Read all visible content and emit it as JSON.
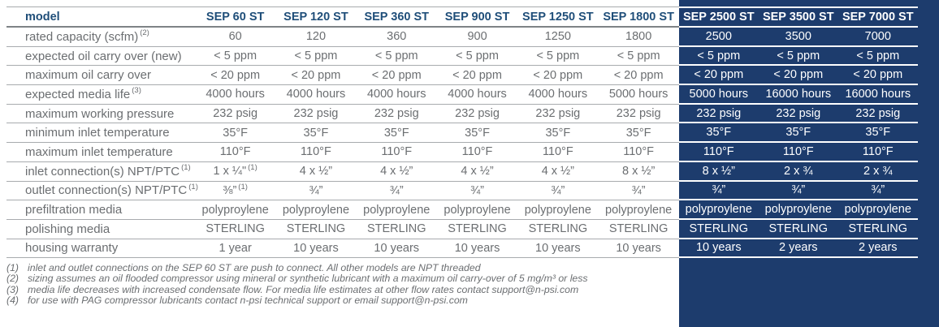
{
  "colors": {
    "navy_panel": "#1d3c6d",
    "header_text": "#1f4e79",
    "body_text": "#6b6e71",
    "divider_gray": "#a8abae",
    "dark_divider": "#ffffff"
  },
  "table": {
    "header": {
      "label": "model",
      "columns": [
        "SEP 60 ST",
        "SEP 120 ST",
        "SEP 360 ST",
        "SEP 900 ST",
        "SEP 1250 ST",
        "SEP 1800 ST",
        "SEP 2500 ST",
        "SEP 3500 ST",
        "SEP 7000 ST"
      ]
    },
    "rows": [
      {
        "label": "rated capacity (scfm)",
        "sup": "(2)",
        "values": [
          "60",
          "120",
          "360",
          "900",
          "1250",
          "1800",
          "2500",
          "3500",
          "7000"
        ]
      },
      {
        "label": "expected oil carry over (new)",
        "values": [
          "< 5 ppm",
          "< 5 ppm",
          "< 5 ppm",
          "< 5 ppm",
          "< 5 ppm",
          "< 5 ppm",
          "< 5 ppm",
          "< 5 ppm",
          "< 5 ppm"
        ]
      },
      {
        "label": "maximum oil carry over",
        "values": [
          "< 20 ppm",
          "< 20 ppm",
          "< 20 ppm",
          "< 20 ppm",
          "< 20 ppm",
          "< 20 ppm",
          "< 20 ppm",
          "< 20 ppm",
          "< 20 ppm"
        ]
      },
      {
        "label": "expected media life",
        "sup": "(3)",
        "values": [
          "4000 hours",
          "4000 hours",
          "4000 hours",
          "4000 hours",
          "4000 hours",
          "5000 hours",
          "5000 hours",
          "16000 hours",
          "16000 hours"
        ]
      },
      {
        "label": "maximum working pressure",
        "values": [
          "232 psig",
          "232 psig",
          "232 psig",
          "232 psig",
          "232 psig",
          "232 psig",
          "232 psig",
          "232 psig",
          "232 psig"
        ]
      },
      {
        "label": "minimum inlet temperature",
        "values": [
          "35°F",
          "35°F",
          "35°F",
          "35°F",
          "35°F",
          "35°F",
          "35°F",
          "35°F",
          "35°F"
        ]
      },
      {
        "label": "maximum inlet temperature",
        "values": [
          "110°F",
          "110°F",
          "110°F",
          "110°F",
          "110°F",
          "110°F",
          "110°F",
          "110°F",
          "110°F"
        ]
      },
      {
        "label": "inlet connection(s) NPT/PTC",
        "sup": "(1)",
        "note": "(1)",
        "values": [
          "1 x ¼\"",
          "4 x ½”",
          "4 x ½”",
          "4 x ½”",
          "4 x ½”",
          "8 x ½”",
          "8 x ½”",
          "2 x ¾",
          "2 x ¾"
        ]
      },
      {
        "label": "outlet connection(s) NPT/PTC",
        "sup": "(1)",
        "note": "(1)",
        "values": [
          "⅜”",
          "¾”",
          "¾”",
          "¾”",
          "¾”",
          "¾”",
          "¾”",
          "¾”",
          "¾”"
        ]
      },
      {
        "label": "prefiltration media",
        "values": [
          "polyproylene",
          "polyproylene",
          "polyproylene",
          "polyproylene",
          "polyproylene",
          "polyproylene",
          "polyproylene",
          "polyproylene",
          "polyproylene"
        ]
      },
      {
        "label": "polishing media",
        "values": [
          "STERLING",
          "STERLING",
          "STERLING",
          "STERLING",
          "STERLING",
          "STERLING",
          "STERLING",
          "STERLING",
          "STERLING"
        ]
      },
      {
        "label": "housing warranty",
        "values": [
          "1 year",
          "10 years",
          "10 years",
          "10 years",
          "10 years",
          "10 years",
          "10 years",
          "2 years",
          "2 years"
        ]
      }
    ]
  },
  "footnotes": [
    {
      "num": "(1)",
      "text": "inlet and outlet connections on the SEP 60 ST are push to connect. All other models are NPT threaded"
    },
    {
      "num": "(2)",
      "text": "sizing assumes an oil flooded compressor using mineral or synthetic lubricant with a maximum oil carry-over of 5 mg/m³ or less"
    },
    {
      "num": "(3)",
      "text": "media life decreases with increased condensate flow.  For media life estimates at other flow rates contact support@n-psi.com"
    },
    {
      "num": "(4)",
      "text": "for use with PAG compressor lubricants contact n-psi technical support or email support@n-psi.com"
    }
  ]
}
